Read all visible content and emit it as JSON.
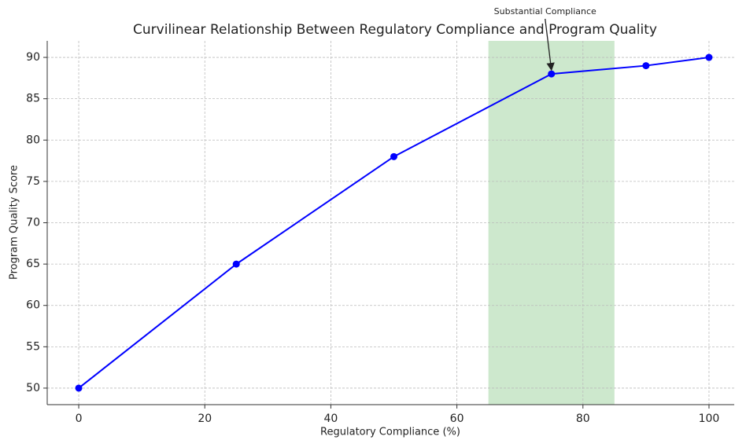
{
  "chart_data": {
    "type": "line",
    "title": "Curvilinear Relationship Between Regulatory Compliance and Program Quality",
    "xlabel": "Regulatory Compliance (%)",
    "ylabel": "Program Quality Score",
    "x": [
      0,
      25,
      50,
      75,
      90,
      100
    ],
    "series": [
      {
        "color": "#0000ff",
        "values": [
          50,
          65,
          78,
          88,
          89,
          90
        ]
      }
    ],
    "xlim": [
      -5,
      104
    ],
    "ylim": [
      48,
      92
    ],
    "xticks": [
      0,
      20,
      40,
      60,
      80,
      100
    ],
    "yticks": [
      50,
      55,
      60,
      65,
      70,
      75,
      80,
      85,
      90
    ],
    "grid": true,
    "span": {
      "x": [
        65,
        85
      ],
      "color": "#2ca02c"
    },
    "annotation": {
      "text": "Substantial Compliance",
      "x": 75,
      "y": 88
    }
  }
}
